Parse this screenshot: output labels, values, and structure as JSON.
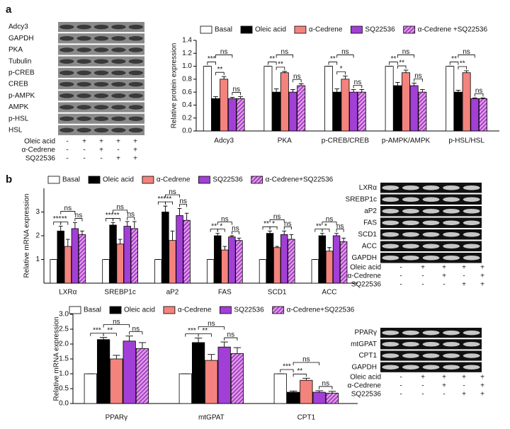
{
  "panel_labels": [
    "a",
    "b"
  ],
  "blots": [
    {
      "bands": [
        "Adcy3",
        "GAPDH",
        "PKA",
        "Tubulin",
        "p-CREB",
        "CREB",
        "p-AMPK",
        "AMPK",
        "p-HSL",
        "HSL"
      ],
      "treatments": [
        {
          "name": "Oleic acid",
          "signs": [
            "-",
            "+",
            "+",
            "+",
            "+"
          ]
        },
        {
          "name": "α-Cedrene",
          "signs": [
            "-",
            "-",
            "+",
            "-",
            "+"
          ]
        },
        {
          "name": "SQ22536",
          "signs": [
            "-",
            "-",
            "-",
            "+",
            "+"
          ]
        }
      ]
    },
    {
      "bands": [
        "LXRα",
        "SREBP1c",
        "aP2",
        "FAS",
        "SCD1",
        "ACC",
        "GAPDH"
      ],
      "treatments": [
        {
          "name": "Oleic acid",
          "signs": [
            "-",
            "+",
            "+",
            "+",
            "+"
          ]
        },
        {
          "name": "α-Cedrene",
          "signs": [
            "-",
            "-",
            "+",
            "-",
            "+"
          ]
        },
        {
          "name": "SQ22536",
          "signs": [
            "-",
            "-",
            "-",
            "+",
            "+"
          ]
        }
      ]
    },
    {
      "bands": [
        "PPARγ",
        "mtGPAT",
        "CPT1",
        "GAPDH"
      ],
      "treatments": [
        {
          "name": "Oleic acid",
          "signs": [
            "-",
            "+",
            "+",
            "+",
            "+"
          ]
        },
        {
          "name": "α-Cedrene",
          "signs": [
            "-",
            "-",
            "+",
            "-",
            "+"
          ]
        },
        {
          "name": "SQ22536",
          "signs": [
            "-",
            "-",
            "-",
            "+",
            "+"
          ]
        }
      ]
    }
  ],
  "chart_data": [
    {
      "type": "bar",
      "y_label": "Relative protein expression",
      "categories": [
        "Adcy3",
        "PKA",
        "p-CREB/CREB",
        "p-AMPK/AMPK",
        "p-HSL/HSL"
      ],
      "ylim": [
        0,
        1.4
      ],
      "yticks": [
        {
          "value": 0,
          "label": "0.0"
        },
        {
          "value": 0.2,
          "label": "0.2"
        },
        {
          "value": 0.4,
          "label": "0.4"
        },
        {
          "value": 0.6,
          "label": "0.6"
        },
        {
          "value": 0.8,
          "label": "0.8"
        },
        {
          "value": 1,
          "label": "1.0"
        },
        {
          "value": 1.2,
          "label": "1.2"
        },
        {
          "value": 1.4,
          "label": "1.4"
        }
      ],
      "series": [
        {
          "name": "Basal",
          "color": "#ffffff",
          "values": [
            1.0,
            1.0,
            1.0,
            1.0,
            1.0
          ],
          "errors": [
            0,
            0,
            0,
            0,
            0
          ]
        },
        {
          "name": "Oleic acid",
          "color": "#000000",
          "values": [
            0.5,
            0.6,
            0.6,
            0.7,
            0.6
          ],
          "errors": [
            0.03,
            0.05,
            0.05,
            0.05,
            0.03
          ]
        },
        {
          "name": "α-Cedrene",
          "color": "#f4837d",
          "values": [
            0.8,
            0.9,
            0.8,
            0.9,
            0.9
          ],
          "errors": [
            0.04,
            0.02,
            0.05,
            0.04,
            0.03
          ]
        },
        {
          "name": "SQ22536",
          "color": "#a23fd6",
          "values": [
            0.5,
            0.6,
            0.6,
            0.7,
            0.5
          ],
          "errors": [
            0.02,
            0.04,
            0.04,
            0.04,
            0.01
          ]
        },
        {
          "name": "α-Cedrene +SQ22536",
          "color": "#a23fd6",
          "hatch": true,
          "values": [
            0.5,
            0.7,
            0.6,
            0.6,
            0.5
          ],
          "errors": [
            0.03,
            0.03,
            0.04,
            0.04,
            0.01
          ]
        }
      ],
      "significance": [
        [
          "***",
          "**",
          "ns",
          "ns"
        ],
        [
          "**",
          "**",
          "ns",
          "ns"
        ],
        [
          "**",
          "*",
          "ns",
          "ns"
        ],
        [
          "**",
          "**",
          "ns",
          "ns"
        ],
        [
          "**",
          "**",
          "ns",
          "ns"
        ]
      ]
    },
    {
      "type": "bar",
      "y_label": "Relative mRNA expression",
      "categories": [
        "LXRα",
        "SREBP1c",
        "aP2",
        "FAS",
        "SCD1",
        "ACC"
      ],
      "ylim": [
        0,
        4
      ],
      "yticks": [
        1,
        2,
        3
      ],
      "series": [
        {
          "name": "Basal",
          "color": "#ffffff",
          "values": [
            1.0,
            1.0,
            1.0,
            1.0,
            1.0,
            1.0
          ],
          "errors": [
            0,
            0,
            0,
            0,
            0,
            0
          ]
        },
        {
          "name": "Oleic acid",
          "color": "#000000",
          "values": [
            2.2,
            2.45,
            3.0,
            2.0,
            2.1,
            2.0
          ],
          "errors": [
            0.2,
            0.1,
            0.25,
            0.1,
            0.1,
            0.1
          ]
        },
        {
          "name": "α-Cedrene",
          "color": "#f4837d",
          "values": [
            1.55,
            1.65,
            1.8,
            1.4,
            1.5,
            1.35
          ],
          "errors": [
            0.3,
            0.2,
            0.4,
            0.15,
            0.05,
            0.15
          ]
        },
        {
          "name": "SQ22536",
          "color": "#a23fd6",
          "values": [
            2.3,
            2.4,
            2.85,
            1.95,
            2.05,
            2.0
          ],
          "errors": [
            0.25,
            0.2,
            0.3,
            0.05,
            0.15,
            0.1
          ]
        },
        {
          "name": "α-Cedrene+SQ22536",
          "color": "#a23fd6",
          "hatch": true,
          "values": [
            2.05,
            2.3,
            2.65,
            1.8,
            1.85,
            1.75
          ],
          "errors": [
            0.15,
            0.3,
            0.3,
            0.1,
            0.2,
            0.15
          ]
        }
      ],
      "significance": [
        [
          "***",
          "**",
          "ns",
          "ns"
        ],
        [
          "***",
          "**",
          "ns",
          "ns"
        ],
        [
          "***",
          "**",
          "ns",
          "ns"
        ],
        [
          "**",
          "*",
          "ns",
          "ns"
        ],
        [
          "**",
          "*",
          "ns",
          "ns"
        ],
        [
          "**",
          "*",
          "ns",
          "ns"
        ]
      ]
    },
    {
      "type": "bar",
      "y_label": "Relative mRNA expression",
      "categories": [
        "PPARγ",
        "mtGPAT",
        "CPT1"
      ],
      "ylim": [
        0,
        3
      ],
      "yticks": [
        {
          "value": 0,
          "label": "0.0"
        },
        {
          "value": 0.5,
          "label": "0.5"
        },
        {
          "value": 1,
          "label": "1.0"
        },
        {
          "value": 1.5,
          "label": "1.5"
        },
        {
          "value": 2,
          "label": "2.0"
        },
        {
          "value": 2.5,
          "label": "2.5"
        },
        {
          "value": 3,
          "label": "3.0"
        }
      ],
      "series": [
        {
          "name": "Basal",
          "color": "#ffffff",
          "values": [
            1.0,
            1.0,
            1.0
          ],
          "errors": [
            0,
            0,
            0
          ]
        },
        {
          "name": "Oleic acid",
          "color": "#000000",
          "values": [
            2.15,
            2.05,
            0.38
          ],
          "errors": [
            0.07,
            0.15,
            0.04
          ]
        },
        {
          "name": "α-Cedrene",
          "color": "#f4837d",
          "values": [
            1.5,
            1.45,
            0.78
          ],
          "errors": [
            0.12,
            0.2,
            0.07
          ]
        },
        {
          "name": "SQ22536",
          "color": "#a23fd6",
          "values": [
            2.1,
            1.9,
            0.38
          ],
          "errors": [
            0.17,
            0.17,
            0.05
          ]
        },
        {
          "name": "α-Cedrene+SQ22536",
          "color": "#a23fd6",
          "hatch": true,
          "values": [
            1.85,
            1.68,
            0.35
          ],
          "errors": [
            0.2,
            0.2,
            0.06
          ]
        }
      ],
      "significance": [
        [
          "***",
          "**",
          "ns",
          "ns"
        ],
        [
          "***",
          "**",
          "ns",
          "ns"
        ],
        [
          "***",
          "**",
          "ns",
          "ns"
        ]
      ]
    }
  ]
}
